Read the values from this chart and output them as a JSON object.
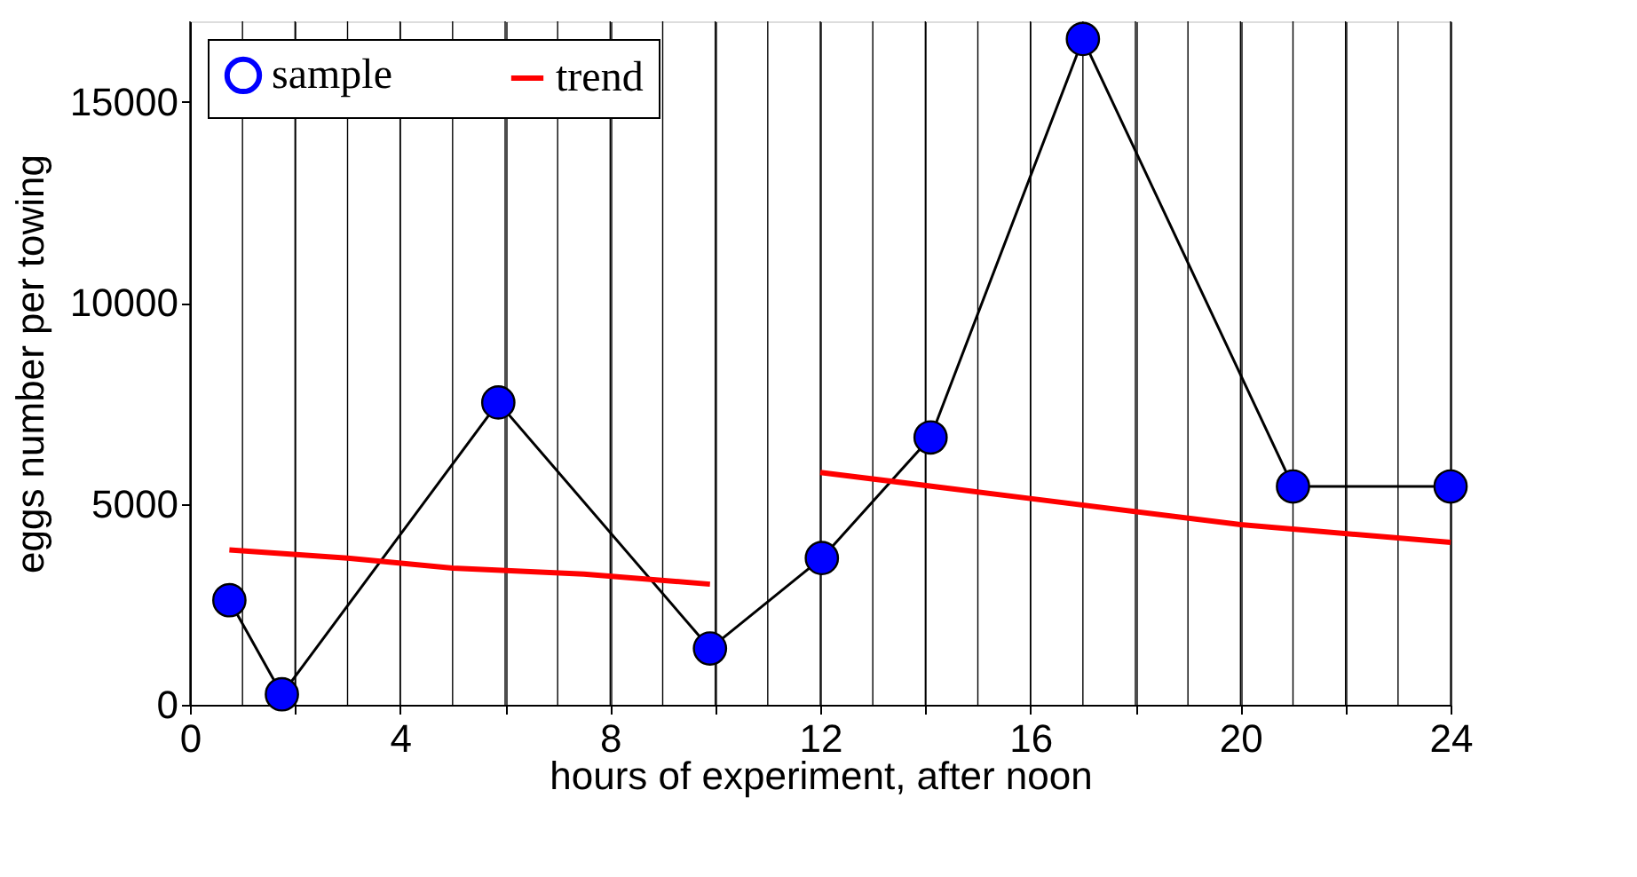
{
  "chart_data": {
    "type": "line",
    "xlabel": "hours of experiment, after noon",
    "ylabel": "eggs number per towing",
    "xlim": [
      0,
      24
    ],
    "ylim": [
      0,
      17000
    ],
    "xticks": [
      0,
      {
        "value": 1,
        "label": null
      },
      {
        "value": 2,
        "label": null
      },
      {
        "value": 3,
        "label": null
      },
      4,
      {
        "value": 5,
        "label": null
      },
      {
        "value": 6,
        "label": null
      },
      {
        "value": 7,
        "label": null
      },
      8,
      {
        "value": 9,
        "label": null
      },
      {
        "value": 10,
        "label": null
      },
      {
        "value": 11,
        "label": null
      },
      12,
      {
        "value": 13,
        "label": null
      },
      {
        "value": 14,
        "label": null
      },
      {
        "value": 15,
        "label": null
      },
      16,
      {
        "value": 17,
        "label": null
      },
      {
        "value": 18,
        "label": null
      },
      {
        "value": 19,
        "label": null
      },
      20,
      {
        "value": 21,
        "label": null
      },
      {
        "value": 22,
        "label": null
      },
      {
        "value": 23,
        "label": null
      },
      24
    ],
    "yticks": [
      0,
      5000,
      10000,
      15000
    ],
    "grid": "x",
    "legend": "top left",
    "series": [
      {
        "name": "sample",
        "color": "#0000ff",
        "marker": "circle",
        "x": [
          0.75,
          1.75,
          5.87,
          9.9,
          12.03,
          14.1,
          17.0,
          21.0,
          24.0
        ],
        "values": [
          2600,
          260,
          7520,
          1400,
          3650,
          6650,
          16560,
          5430,
          5430
        ]
      },
      {
        "name": "trend",
        "color": "#ff0000",
        "marker": "none",
        "x": [
          0.75,
          3,
          5,
          7.5,
          9.9,
          11,
          12,
          16,
          20,
          24
        ],
        "values": [
          3850,
          3650,
          3400,
          3250,
          3000,
          null,
          5780,
          5130,
          4480,
          4040
        ]
      }
    ]
  }
}
